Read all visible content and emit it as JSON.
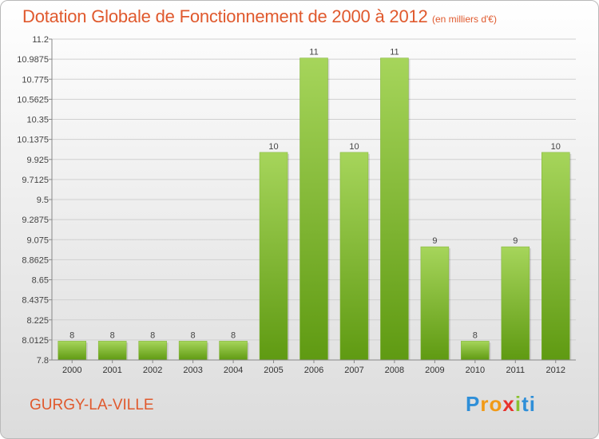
{
  "title": "Dotation Globale de Fonctionnement de 2000 à 2012",
  "subtitle": "(en milliers d'€)",
  "commune": "GURGY-LA-VILLE",
  "logo": [
    "P",
    "r",
    "o",
    "x",
    "i",
    "ti"
  ],
  "colors": {
    "title": "#e0592d",
    "bar_light": "#a6d55b",
    "bar_dark": "#5f9a12"
  },
  "chart_data": {
    "type": "bar",
    "title": "Dotation Globale de Fonctionnement de 2000 à 2012",
    "subtitle": "(en milliers d'€)",
    "categories": [
      "2000",
      "2001",
      "2002",
      "2003",
      "2004",
      "2005",
      "2006",
      "2007",
      "2008",
      "2009",
      "2010",
      "2011",
      "2012"
    ],
    "values": [
      8,
      8,
      8,
      8,
      8,
      10,
      11,
      10,
      11,
      9,
      8,
      9,
      10
    ],
    "ylim": [
      7.8,
      11.2
    ],
    "yticks": [
      "7.8",
      "8.0125",
      "8.225",
      "8.4375",
      "8.65",
      "8.8625",
      "9.075",
      "9.2875",
      "9.5",
      "9.7125",
      "9.925",
      "10.1375",
      "10.35",
      "10.5625",
      "10.775",
      "10.9875",
      "11.2"
    ],
    "grid": true,
    "legend": "none"
  }
}
